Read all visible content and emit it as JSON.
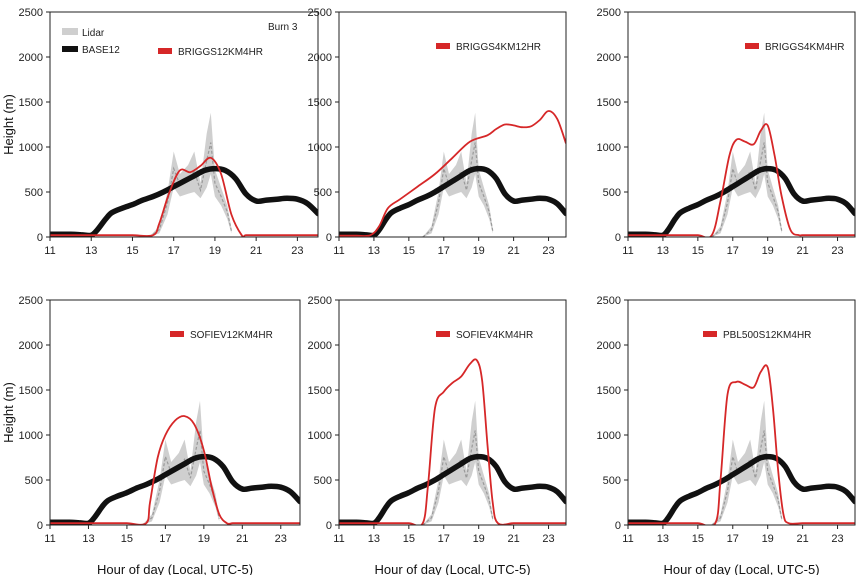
{
  "colors": {
    "lidar": "#cfcfcf",
    "lidar_dark": "#9a9a9a",
    "base": "#111111",
    "model": "#d62728"
  },
  "layout_note": "",
  "chart_data": [
    {
      "type": "line",
      "panel_label": "Burn 3",
      "xlabel": "",
      "ylabel": "Height (m)",
      "xlim": [
        11,
        24
      ],
      "ylim": [
        0,
        2500
      ],
      "xticks": [
        "11",
        "13",
        "15",
        "17",
        "19",
        "21",
        "23"
      ],
      "yticks": [
        "0",
        "500",
        "1000",
        "1500",
        "2000",
        "2500"
      ],
      "legend": [
        {
          "name": "Lidar",
          "kind": "lidar"
        },
        {
          "name": "BASE12",
          "kind": "base"
        },
        {
          "name": "BRIGGS12KM4HR",
          "kind": "model"
        }
      ],
      "model": {
        "name": "BRIGGS12KM4HR",
        "x": [
          11,
          12,
          13,
          14,
          15,
          16,
          16.3,
          16.8,
          17.3,
          17.8,
          18.3,
          18.8,
          19.3,
          19.8,
          20.3,
          20.5,
          21,
          22,
          23,
          24
        ],
        "y": [
          20,
          20,
          20,
          20,
          20,
          20,
          150,
          500,
          740,
          720,
          790,
          880,
          700,
          250,
          20,
          20,
          20,
          20,
          20,
          20
        ]
      }
    },
    {
      "type": "line",
      "panel_label": "",
      "xlabel": "",
      "ylabel": "",
      "xlim": [
        11,
        24
      ],
      "ylim": [
        0,
        2500
      ],
      "xticks": [
        "11",
        "13",
        "15",
        "17",
        "19",
        "21",
        "23"
      ],
      "yticks": [
        "0",
        "500",
        "1000",
        "1500",
        "2000",
        "2500"
      ],
      "legend": [
        {
          "name": "BRIGGS4KM12HR",
          "kind": "model"
        }
      ],
      "model": {
        "name": "BRIGGS4KM12HR",
        "x": [
          11,
          12,
          12.8,
          13.3,
          13.8,
          14.5,
          15.5,
          16.5,
          17.5,
          18.5,
          19.5,
          20,
          20.5,
          21,
          21.5,
          22,
          22.5,
          23,
          23.5,
          24
        ],
        "y": [
          15,
          15,
          20,
          120,
          320,
          420,
          560,
          700,
          880,
          1060,
          1130,
          1200,
          1250,
          1240,
          1220,
          1230,
          1300,
          1400,
          1310,
          1040
        ]
      }
    },
    {
      "type": "line",
      "panel_label": "",
      "xlabel": "",
      "ylabel": "",
      "xlim": [
        11,
        24
      ],
      "ylim": [
        0,
        2500
      ],
      "xticks": [
        "11",
        "13",
        "15",
        "17",
        "19",
        "21",
        "23"
      ],
      "yticks": [
        "0",
        "500",
        "1000",
        "1500",
        "2000",
        "2500"
      ],
      "legend": [
        {
          "name": "BRIGGS4KM4HR",
          "kind": "model"
        }
      ],
      "model": {
        "name": "BRIGGS4KM4HR",
        "x": [
          11,
          12,
          13,
          14,
          15,
          15.8,
          16.3,
          16.8,
          17.2,
          17.7,
          18.2,
          18.6,
          19,
          19.4,
          19.8,
          20.3,
          20.8,
          21,
          22,
          23,
          24
        ],
        "y": [
          20,
          20,
          20,
          20,
          20,
          20,
          400,
          900,
          1080,
          1060,
          1030,
          1180,
          1240,
          900,
          450,
          80,
          20,
          20,
          20,
          20,
          20
        ]
      }
    },
    {
      "type": "line",
      "panel_label": "",
      "xlabel": "Hour of day (Local, UTC-5)",
      "ylabel": "Height (m)",
      "xlim": [
        11,
        24
      ],
      "ylim": [
        0,
        2500
      ],
      "xticks": [
        "11",
        "13",
        "15",
        "17",
        "19",
        "21",
        "23"
      ],
      "yticks": [
        "0",
        "500",
        "1000",
        "1500",
        "2000",
        "2500"
      ],
      "legend": [
        {
          "name": "SOFIEV12KM4HR",
          "kind": "model"
        }
      ],
      "model": {
        "name": "SOFIEV12KM4HR",
        "x": [
          11,
          12,
          13,
          14,
          15,
          16,
          16.2,
          16.6,
          17,
          17.5,
          18,
          18.5,
          19,
          19.4,
          19.8,
          20.2,
          20.5,
          21,
          22,
          23,
          24
        ],
        "y": [
          20,
          20,
          20,
          20,
          20,
          20,
          250,
          750,
          1000,
          1160,
          1210,
          1120,
          830,
          430,
          120,
          20,
          20,
          20,
          20,
          20,
          20
        ]
      }
    },
    {
      "type": "line",
      "panel_label": "",
      "xlabel": "Hour of day (Local, UTC-5)",
      "ylabel": "",
      "xlim": [
        11,
        24
      ],
      "ylim": [
        0,
        2500
      ],
      "xticks": [
        "11",
        "13",
        "15",
        "17",
        "19",
        "21",
        "23"
      ],
      "yticks": [
        "0",
        "500",
        "1000",
        "1500",
        "2000",
        "2500"
      ],
      "legend": [
        {
          "name": "SOFIEV4KM4HR",
          "kind": "model"
        }
      ],
      "model": {
        "name": "SOFIEV4KM4HR",
        "x": [
          11,
          12,
          13,
          14,
          15,
          15.8,
          16.1,
          16.5,
          17,
          17.5,
          18,
          18.5,
          18.9,
          19.2,
          19.5,
          19.8,
          20.1,
          21,
          22,
          23,
          24
        ],
        "y": [
          20,
          20,
          20,
          20,
          20,
          20,
          450,
          1300,
          1480,
          1580,
          1650,
          1790,
          1830,
          1600,
          900,
          250,
          20,
          20,
          20,
          20,
          20
        ]
      }
    },
    {
      "type": "line",
      "panel_label": "",
      "xlabel": "Hour of day (Local, UTC-5)",
      "ylabel": "",
      "xlim": [
        11,
        24
      ],
      "ylim": [
        0,
        2500
      ],
      "xticks": [
        "11",
        "13",
        "15",
        "17",
        "19",
        "21",
        "23"
      ],
      "yticks": [
        "0",
        "500",
        "1000",
        "1500",
        "2000",
        "2500"
      ],
      "legend": [
        {
          "name": "PBL500S12KM4HR",
          "kind": "model"
        }
      ],
      "model": {
        "name": "PBL500S12KM4HR",
        "x": [
          11,
          12,
          13,
          14,
          15,
          16,
          16.3,
          16.7,
          17.2,
          17.7,
          18.2,
          18.6,
          19,
          19.3,
          19.6,
          19.9,
          20.2,
          21,
          22,
          23,
          24
        ],
        "y": [
          20,
          20,
          20,
          20,
          20,
          20,
          500,
          1450,
          1590,
          1560,
          1530,
          1700,
          1750,
          1300,
          600,
          120,
          20,
          20,
          20,
          20,
          20
        ]
      }
    }
  ],
  "shared_series": {
    "base": {
      "name": "BASE12",
      "x": [
        11,
        12,
        12.5,
        13,
        13.3,
        13.7,
        14,
        14.5,
        15,
        15.5,
        16,
        16.5,
        17,
        17.5,
        18,
        18.5,
        19,
        19.5,
        20,
        20.5,
        21,
        21.5,
        22,
        22.5,
        23,
        23.5,
        24
      ],
      "y": [
        30,
        30,
        25,
        20,
        80,
        200,
        270,
        320,
        360,
        410,
        450,
        500,
        560,
        620,
        680,
        740,
        760,
        740,
        650,
        480,
        400,
        410,
        420,
        430,
        420,
        370,
        260
      ]
    },
    "lidar": {
      "name": "Lidar",
      "x": [
        15.8,
        16.3,
        16.7,
        17,
        17.3,
        17.7,
        18,
        18.3,
        18.6,
        18.8,
        19,
        19.3,
        19.6,
        19.8
      ],
      "upper": [
        0,
        120,
        500,
        950,
        700,
        800,
        950,
        600,
        1150,
        1380,
        750,
        550,
        350,
        100
      ],
      "lower": [
        0,
        40,
        250,
        550,
        450,
        480,
        500,
        430,
        550,
        700,
        450,
        350,
        200,
        40
      ],
      "mid": [
        0,
        80,
        380,
        760,
        580,
        640,
        730,
        520,
        850,
        1050,
        600,
        450,
        280,
        70
      ]
    }
  }
}
